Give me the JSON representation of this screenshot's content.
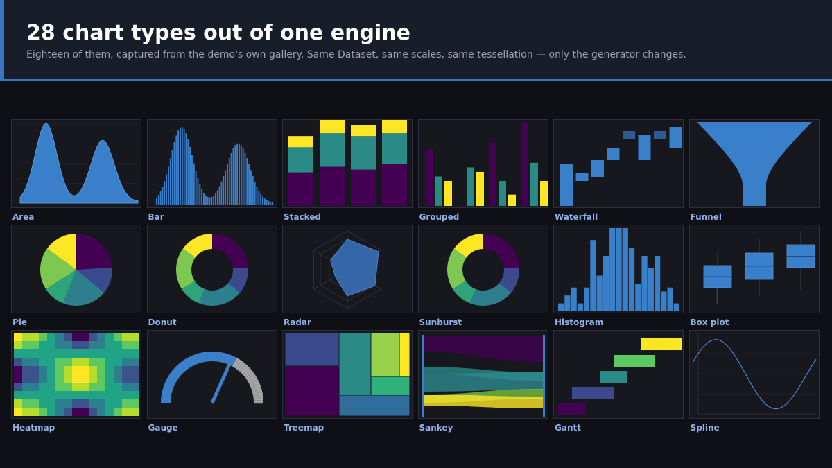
{
  "header": {
    "title": "28 chart types out of one engine",
    "subtitle": "Eighteen of them, captured from the demo's own gallery. Same Dataset, same scales, same tessellation — only the generator changes."
  },
  "colors": {
    "blue": "#3a7fc9",
    "purple": "#440154",
    "teal": "#2a8a85",
    "yellow": "#fde725",
    "green": "#7ac143",
    "navy": "#3b4a8c",
    "gray": "#a8a8a8"
  },
  "chart_data": [
    {
      "type": "area",
      "label": "Area"
    },
    {
      "type": "bar",
      "label": "Bar"
    },
    {
      "type": "bar",
      "label": "Stacked",
      "stacked": true,
      "values": [
        [
          12,
          9,
          4
        ],
        [
          14,
          12,
          5
        ],
        [
          13,
          12,
          4
        ],
        [
          15,
          11,
          7
        ]
      ]
    },
    {
      "type": "bar",
      "label": "Grouped",
      "values": [
        [
          25,
          13,
          11
        ],
        [
          0,
          17,
          15
        ],
        [
          28,
          11,
          5
        ],
        [
          37,
          19,
          11
        ]
      ]
    },
    {
      "type": "bar",
      "label": "Waterfall",
      "values": [
        [
          10,
          0
        ],
        [
          8,
          6
        ],
        [
          11,
          7
        ],
        [
          14,
          11
        ],
        [
          18,
          16
        ],
        [
          17,
          11
        ],
        [
          18,
          16
        ],
        [
          19,
          14
        ]
      ]
    },
    {
      "type": "funnel",
      "label": "Funnel"
    },
    {
      "type": "pie",
      "label": "Pie",
      "values": [
        25,
        15,
        20,
        15,
        25
      ]
    },
    {
      "type": "pie",
      "label": "Donut",
      "values": [
        25,
        15,
        20,
        15,
        25
      ]
    },
    {
      "type": "radar",
      "label": "Radar"
    },
    {
      "type": "pie",
      "label": "Sunburst",
      "values": [
        25,
        15,
        20,
        15,
        25
      ]
    },
    {
      "type": "bar",
      "label": "Histogram",
      "values": [
        2,
        4,
        6,
        2,
        6,
        18,
        9,
        14,
        21,
        21,
        21,
        16,
        7,
        14,
        11,
        14,
        5,
        6,
        2
      ]
    },
    {
      "type": "box",
      "label": "Box plot"
    },
    {
      "type": "heatmap",
      "label": "Heatmap"
    },
    {
      "type": "gauge",
      "label": "Gauge"
    },
    {
      "type": "treemap",
      "label": "Treemap"
    },
    {
      "type": "sankey",
      "label": "Sankey"
    },
    {
      "type": "gantt",
      "label": "Gantt"
    },
    {
      "type": "line",
      "label": "Spline"
    }
  ]
}
